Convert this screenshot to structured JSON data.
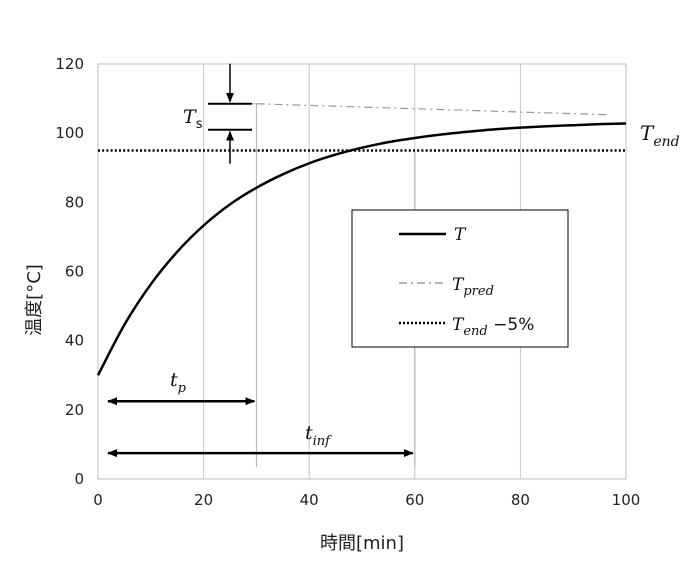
{
  "chart_data": {
    "type": "line",
    "xlabel": "時間[min]",
    "ylabel": "温度[°C]",
    "xlim": [
      0,
      100
    ],
    "ylim": [
      0,
      120
    ],
    "xticks": [
      0,
      20,
      40,
      60,
      80,
      100
    ],
    "yticks": [
      0,
      20,
      40,
      60,
      80,
      100,
      120
    ],
    "grid": "vertical",
    "legend_position": "center-right",
    "series": [
      {
        "name": "T",
        "style": "solid",
        "color": "#000000",
        "x": [
          0,
          5,
          10,
          15,
          20,
          25,
          30,
          35,
          40,
          45,
          50,
          55,
          60,
          65,
          70,
          75,
          80,
          85,
          90,
          95,
          100
        ],
        "y": [
          30,
          44.6,
          56.3,
          65.7,
          73.3,
          79.4,
          84.2,
          88.1,
          91.3,
          93.8,
          95.8,
          97.4,
          98.6,
          99.6,
          100.4,
          101.1,
          101.6,
          102.0,
          102.3,
          102.6,
          102.8
        ]
      },
      {
        "name": "pred",
        "label_base": "T",
        "label_sub": "pred",
        "style": "dash-dot",
        "color": "#999999",
        "x": [
          30,
          97
        ],
        "y": [
          108.5,
          105.3
        ]
      },
      {
        "name": "end",
        "label_base": "T",
        "label_sub": "end",
        "label_suffix": " −5%",
        "style": "dotted",
        "color": "#000000",
        "x": [
          0,
          100
        ],
        "y": [
          95,
          95
        ]
      }
    ],
    "annotations": {
      "t_end_label": {
        "base": "T",
        "sub": "end"
      },
      "ts_label": {
        "base": "T",
        "sub": "s"
      },
      "ts_markers": {
        "x": 25,
        "y_top": 108.5,
        "y_bottom": 101
      },
      "t_p": {
        "base": "t",
        "sub": "p",
        "x_start": 0,
        "x_end": 30,
        "y": 22.5
      },
      "t_inf": {
        "base": "t",
        "sub": "inf",
        "x_start": 0,
        "x_end": 60,
        "y": 7.5
      },
      "reference_lines_x": [
        30,
        60
      ]
    }
  }
}
